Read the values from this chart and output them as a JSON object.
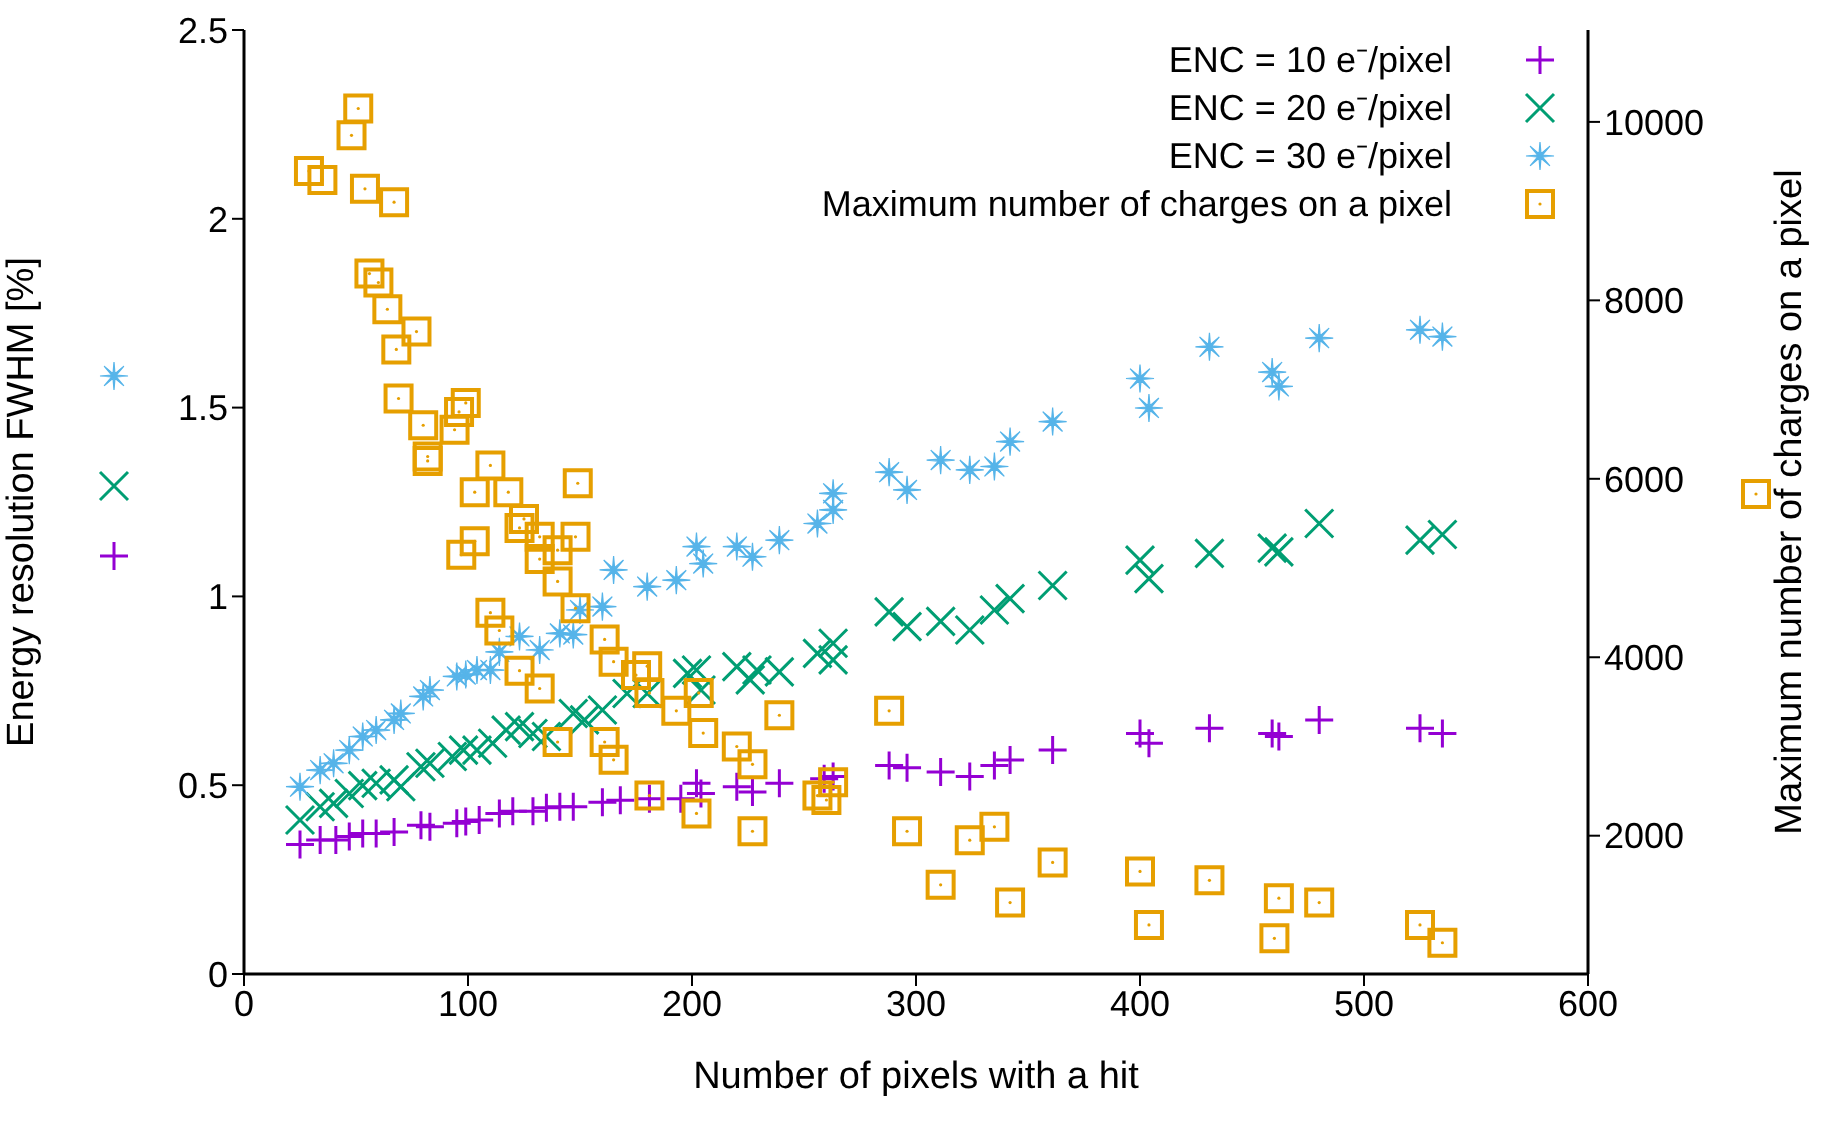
{
  "chart_data": {
    "type": "scatter",
    "xlabel": "Number of pixels with a hit",
    "ylabel": "Energy resolution FWHM [%]",
    "y2label": "Maximum number of charges on a pixel",
    "xlim": [
      0,
      600
    ],
    "xticks": [
      0,
      100,
      200,
      300,
      400,
      500,
      600
    ],
    "ylim": [
      0,
      2.5
    ],
    "yticks": [
      0,
      0.5,
      1,
      1.5,
      2,
      2.5
    ],
    "y2lim": [
      450,
      11030
    ],
    "y2ticks": [
      2000,
      4000,
      6000,
      8000,
      10000
    ],
    "grid": false,
    "legend": "top right",
    "series": [
      {
        "name": "ENC = 10 e⁻/pixel",
        "color": "#9400d3",
        "x": [
          25,
          34,
          41,
          47,
          53,
          59,
          67,
          79,
          83,
          95,
          99,
          105,
          114,
          120,
          129,
          135,
          141,
          147,
          160,
          168,
          181,
          195,
          202,
          204,
          220,
          227,
          239,
          259,
          263,
          288,
          296,
          311,
          324,
          335,
          342,
          361,
          400,
          404,
          431,
          459,
          462,
          480,
          525,
          535
        ],
        "values": [
          0.343,
          0.355,
          0.355,
          0.364,
          0.372,
          0.372,
          0.376,
          0.394,
          0.39,
          0.399,
          0.404,
          0.408,
          0.425,
          0.431,
          0.431,
          0.44,
          0.443,
          0.443,
          0.455,
          0.46,
          0.464,
          0.464,
          0.505,
          0.478,
          0.496,
          0.482,
          0.505,
          0.517,
          0.523,
          0.552,
          0.546,
          0.535,
          0.523,
          0.552,
          0.567,
          0.593,
          0.637,
          0.611,
          0.651,
          0.637,
          0.629,
          0.673,
          0.651,
          0.637
        ]
      },
      {
        "name": "ENC = 20 e⁻/pixel",
        "color": "#009e73",
        "marker": "cross",
        "x": [
          25,
          34,
          40,
          47,
          53,
          59,
          67,
          70,
          79,
          83,
          93,
          98,
          104,
          111,
          117,
          123,
          129,
          135,
          147,
          152,
          160,
          171,
          180,
          198,
          202,
          204,
          220,
          226,
          229,
          239,
          256,
          263,
          263,
          288,
          296,
          311,
          324,
          335,
          342,
          361,
          400,
          404,
          431,
          459,
          462,
          480,
          525,
          535
        ],
        "values": [
          0.408,
          0.443,
          0.452,
          0.478,
          0.499,
          0.505,
          0.514,
          0.496,
          0.549,
          0.558,
          0.576,
          0.593,
          0.593,
          0.611,
          0.646,
          0.655,
          0.637,
          0.629,
          0.69,
          0.673,
          0.699,
          0.743,
          0.743,
          0.796,
          0.805,
          0.752,
          0.814,
          0.779,
          0.805,
          0.8,
          0.849,
          0.876,
          0.832,
          0.959,
          0.92,
          0.934,
          0.911,
          0.964,
          0.994,
          1.029,
          1.096,
          1.047,
          1.114,
          1.128,
          1.118,
          1.193,
          1.149,
          1.164
        ]
      },
      {
        "name": "ENC = 30 e⁻/pixel",
        "color": "#56b4e9",
        "marker": "star",
        "x": [
          25,
          34,
          40,
          47,
          53,
          59,
          67,
          70,
          80,
          83,
          95,
          99,
          104,
          110,
          114,
          123,
          132,
          141,
          147,
          150,
          160,
          165,
          180,
          193,
          202,
          205,
          220,
          227,
          239,
          256,
          263,
          263,
          288,
          296,
          311,
          324,
          335,
          342,
          361,
          400,
          404,
          431,
          459,
          462,
          480,
          525,
          535
        ],
        "values": [
          0.496,
          0.54,
          0.558,
          0.593,
          0.629,
          0.646,
          0.673,
          0.69,
          0.735,
          0.752,
          0.788,
          0.793,
          0.805,
          0.805,
          0.853,
          0.894,
          0.858,
          0.902,
          0.899,
          0.964,
          0.973,
          1.07,
          1.026,
          1.043,
          1.132,
          1.087,
          1.132,
          1.105,
          1.149,
          1.193,
          1.229,
          1.273,
          1.329,
          1.282,
          1.361,
          1.335,
          1.344,
          1.41,
          1.463,
          1.577,
          1.499,
          1.661,
          1.594,
          1.556,
          1.684,
          1.706,
          1.688
        ]
      },
      {
        "name": "Maximum number of charges on a pixel",
        "color": "#e69f00",
        "marker": "square",
        "axis": "y2",
        "x": [
          51,
          48,
          29,
          35,
          54,
          67,
          56,
          60,
          64,
          77,
          68,
          69,
          80,
          94,
          96,
          99,
          82,
          82,
          110,
          103,
          118,
          149,
          125,
          123,
          103,
          97,
          132,
          148,
          140,
          132,
          140,
          148,
          110,
          114,
          123,
          132,
          161,
          165,
          180,
          175,
          181,
          193,
          140,
          161,
          165,
          181,
          202,
          203,
          205,
          239,
          220,
          227,
          227,
          256,
          260,
          263,
          288,
          296,
          311,
          324,
          335,
          342,
          361,
          400,
          404,
          431,
          462,
          460,
          480,
          525,
          535
        ],
        "values": [
          10150,
          9850,
          9450,
          9350,
          9250,
          9100,
          8300,
          8200,
          7900,
          7650,
          7450,
          6900,
          6600,
          6550,
          6750,
          6850,
          6250,
          6200,
          6150,
          5850,
          5850,
          5950,
          5550,
          5450,
          5300,
          5150,
          5350,
          5350,
          5200,
          5100,
          4850,
          4550,
          4500,
          4300,
          3850,
          3650,
          4200,
          3950,
          3900,
          3800,
          3600,
          3400,
          3050,
          3050,
          2850,
          2450,
          2250,
          3600,
          3150,
          3350,
          3000,
          2800,
          2050,
          2450,
          2400,
          2600,
          3400,
          2050,
          1450,
          1950,
          2100,
          1250,
          1700,
          1600,
          1000,
          1500,
          1300,
          850,
          1250,
          1000,
          800
        ]
      }
    ]
  }
}
